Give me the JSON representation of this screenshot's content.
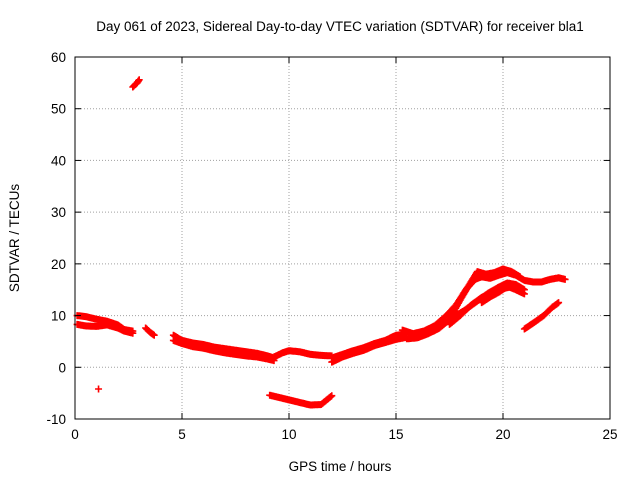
{
  "chart_data": {
    "type": "scatter",
    "title": "Day 061 of 2023, Sidereal Day-to-day VTEC variation (SDTVAR) for receiver bla1",
    "xlabel": "GPS time / hours",
    "ylabel": "SDTVAR / TECUs",
    "xlim": [
      0,
      25
    ],
    "ylim": [
      -10,
      60
    ],
    "xticks": [
      0,
      5,
      10,
      15,
      20,
      25
    ],
    "yticks": [
      -10,
      0,
      10,
      20,
      30,
      40,
      50,
      60
    ],
    "grid": true,
    "marker": "+",
    "series": [
      {
        "name": "SDTVAR",
        "color": "#ff0000",
        "traces": [
          {
            "x": [
              0.1,
              0.5,
              1.0,
              1.5,
              2.0,
              2.3,
              2.7
            ],
            "y": [
              8.3,
              8.0,
              7.9,
              8.2,
              7.6,
              7.0,
              6.6
            ]
          },
          {
            "x": [
              0.1,
              0.5,
              1.0,
              1.5,
              2.0,
              2.3,
              2.7
            ],
            "y": [
              10.0,
              9.8,
              9.3,
              8.9,
              8.2,
              7.3,
              7.0
            ]
          },
          {
            "x": [
              2.7,
              2.9,
              3.0
            ],
            "y": [
              54.2,
              55.0,
              55.6
            ]
          },
          {
            "x": [
              1.1
            ],
            "y": [
              -4.2
            ]
          },
          {
            "x": [
              3.3,
              3.5,
              3.7
            ],
            "y": [
              7.6,
              6.8,
              6.2
            ]
          },
          {
            "x": [
              4.6,
              5.0,
              5.5,
              6.0,
              6.5,
              7.0,
              7.5,
              8.0,
              8.5,
              9.0,
              9.3
            ],
            "y": [
              6.2,
              5.2,
              4.7,
              4.4,
              3.9,
              3.6,
              3.3,
              3.0,
              2.7,
              2.2,
              1.8
            ]
          },
          {
            "x": [
              4.6,
              5.0,
              5.5,
              6.0,
              6.5,
              7.0,
              7.5,
              8.0,
              8.5,
              9.0,
              9.3
            ],
            "y": [
              5.2,
              4.6,
              4.0,
              3.7,
              3.2,
              2.8,
              2.5,
              2.2,
              2.0,
              1.6,
              1.3
            ]
          },
          {
            "x": [
              9.3,
              9.7,
              10.0,
              10.5,
              11.0,
              11.5,
              12.0
            ],
            "y": [
              2.0,
              2.8,
              3.2,
              3.0,
              2.5,
              2.3,
              2.2
            ]
          },
          {
            "x": [
              9.1,
              9.5,
              10.0,
              10.5,
              11.0,
              11.5,
              12.0
            ],
            "y": [
              -5.4,
              -5.8,
              -6.3,
              -6.8,
              -7.3,
              -7.2,
              -5.5
            ]
          },
          {
            "x": [
              12.0,
              12.5,
              13.0,
              13.5,
              14.0,
              14.5,
              15.0,
              15.5
            ],
            "y": [
              1.0,
              2.0,
              2.7,
              3.3,
              4.2,
              4.8,
              5.4,
              5.8
            ]
          },
          {
            "x": [
              12.0,
              12.5,
              13.0,
              13.5,
              14.0,
              14.5,
              15.0,
              15.5
            ],
            "y": [
              1.8,
              2.5,
              3.2,
              3.8,
              4.6,
              5.2,
              6.2,
              6.4
            ]
          },
          {
            "x": [
              15.3,
              15.8,
              16.3,
              16.8,
              17.3,
              17.8,
              18.3,
              18.7,
              19.0,
              19.4,
              19.8,
              20.2,
              20.6,
              21.0,
              21.4,
              21.8,
              22.2,
              22.6,
              22.9
            ],
            "y": [
              7.2,
              6.5,
              7.0,
              8.0,
              9.8,
              12.0,
              15.2,
              17.0,
              17.5,
              17.2,
              17.8,
              18.3,
              17.8,
              16.8,
              16.5,
              16.5,
              17.0,
              17.3,
              17.0
            ]
          },
          {
            "x": [
              15.5,
              16.0,
              16.5,
              17.0,
              17.5,
              18.0,
              18.5,
              18.8,
              19.2,
              19.6,
              20.0,
              20.4,
              20.8
            ],
            "y": [
              5.5,
              5.7,
              6.5,
              7.5,
              9.2,
              13.0,
              16.5,
              18.5,
              18.0,
              18.3,
              19.0,
              18.5,
              17.5
            ]
          },
          {
            "x": [
              17.5,
              18.0,
              18.5,
              19.0,
              19.5,
              20.0,
              20.3,
              20.6,
              21.0
            ],
            "y": [
              8.3,
              10.0,
              12.0,
              13.5,
              14.5,
              15.2,
              15.5,
              15.0,
              14.2
            ]
          },
          {
            "x": [
              17.6,
              18.2,
              18.8,
              19.3,
              19.8,
              20.2,
              20.6,
              21.0
            ],
            "y": [
              9.5,
              11.0,
              12.8,
              14.3,
              15.5,
              16.3,
              16.0,
              15.0
            ]
          },
          {
            "x": [
              19.0,
              19.4,
              19.8,
              20.2,
              20.6
            ],
            "y": [
              12.5,
              13.6,
              14.5,
              15.6,
              16.0
            ]
          },
          {
            "x": [
              21.0,
              21.5,
              21.9,
              22.3,
              22.6
            ],
            "y": [
              7.4,
              8.8,
              10.0,
              11.6,
              12.5
            ]
          }
        ]
      }
    ]
  }
}
